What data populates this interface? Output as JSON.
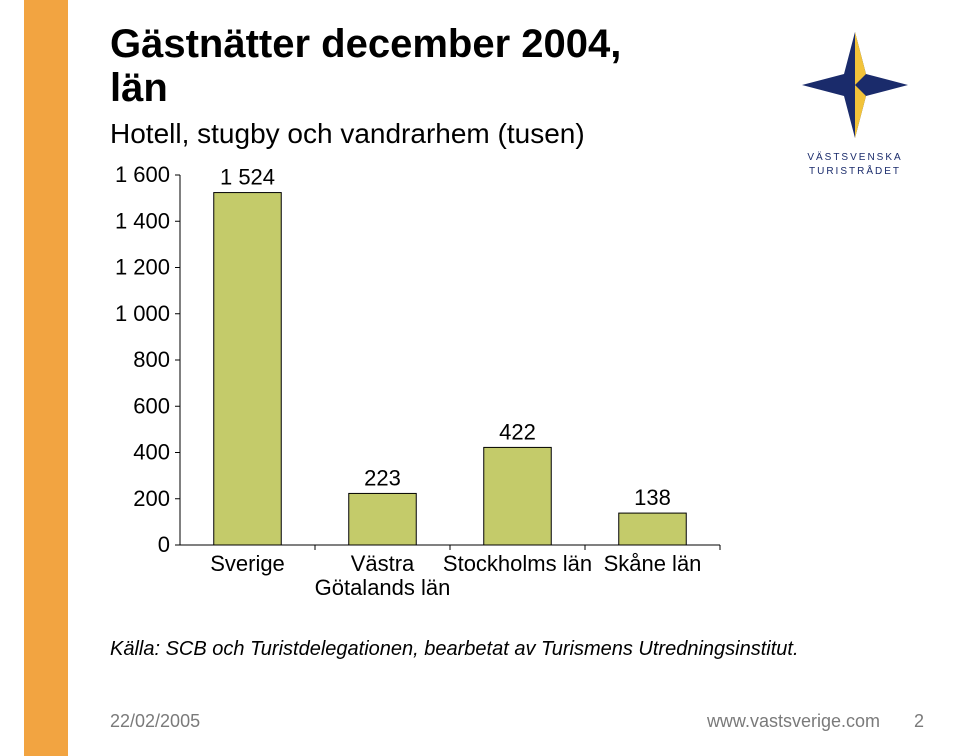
{
  "slide": {
    "accent_color": "#f2a441",
    "title_line1": "Gästnätter december 2004,",
    "title_line2": "län",
    "subtitle": "Hotell, stugby och vandrarhem (tusen)"
  },
  "chart": {
    "type": "bar",
    "categories": [
      "Sverige",
      "Västra\nGötalands län",
      "Stockholms län",
      "Skåne län"
    ],
    "values": [
      1524,
      223,
      422,
      138
    ],
    "value_labels": [
      "1 524",
      "223",
      "422",
      "138"
    ],
    "bar_color": "#c4cb6a",
    "bar_border": "#000000",
    "ylim": [
      0,
      1600
    ],
    "ytick_step": 200,
    "ytick_labels": [
      "0",
      "200",
      "400",
      "600",
      "800",
      "1 000",
      "1 200",
      "1 400",
      "1 600"
    ],
    "axis_color": "#000000",
    "label_fontsize": 22,
    "bar_width_ratio": 0.5
  },
  "source": "Källa: SCB och Turistdelegationen, bearbetat av Turismens Utredningsinstitut.",
  "footer": {
    "date": "22/02/2005",
    "url": "www.vastsverige.com",
    "page": "2",
    "color": "#7a7a7a"
  },
  "logo": {
    "text_line1": "VÄSTSVENSKA",
    "text_line2": "TURISTRÅDET",
    "star_blue": "#1a2b6b",
    "star_yellow": "#f2c33a"
  }
}
